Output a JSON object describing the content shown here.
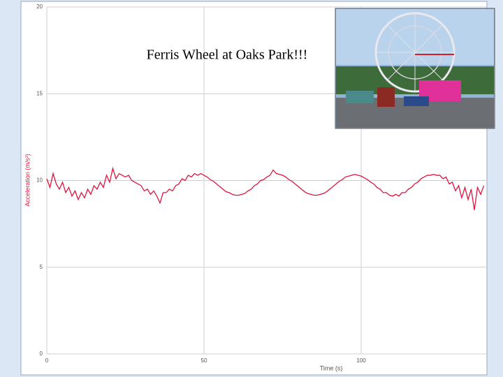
{
  "chart_data": {
    "type": "line",
    "annotation": "Ferris Wheel at Oaks Park!!!",
    "x_label": "Time (s)",
    "y_label": "Acceleration (m/s²)",
    "xlim": [
      0,
      140
    ],
    "ylim": [
      0,
      20
    ],
    "xticks": [
      0,
      50,
      100
    ],
    "yticks": [
      0,
      5,
      10,
      15,
      20
    ],
    "grid": true,
    "x": [
      0,
      1,
      2,
      3,
      4,
      5,
      6,
      7,
      8,
      9,
      10,
      11,
      12,
      13,
      14,
      15,
      16,
      17,
      18,
      19,
      20,
      21,
      22,
      23,
      24,
      25,
      26,
      27,
      28,
      29,
      30,
      31,
      32,
      33,
      34,
      35,
      36,
      37,
      38,
      39,
      40,
      41,
      42,
      43,
      44,
      45,
      46,
      47,
      48,
      49,
      50,
      51,
      52,
      53,
      54,
      55,
      56,
      57,
      58,
      59,
      60,
      61,
      62,
      63,
      64,
      65,
      66,
      67,
      68,
      69,
      70,
      71,
      72,
      73,
      74,
      75,
      76,
      77,
      78,
      79,
      80,
      81,
      82,
      83,
      84,
      85,
      86,
      87,
      88,
      89,
      90,
      91,
      92,
      93,
      94,
      95,
      96,
      97,
      98,
      99,
      100,
      101,
      102,
      103,
      104,
      105,
      106,
      107,
      108,
      109,
      110,
      111,
      112,
      113,
      114,
      115,
      116,
      117,
      118,
      119,
      120,
      121,
      122,
      123,
      124,
      125,
      126,
      127,
      128,
      129,
      130,
      131,
      132,
      133,
      134,
      135,
      136,
      137,
      138,
      139
    ],
    "series": [
      {
        "name": "Acceleration",
        "color": "#e0143c",
        "values": [
          10.1,
          9.6,
          10.4,
          9.8,
          9.5,
          9.9,
          9.3,
          9.6,
          9.1,
          9.4,
          8.9,
          9.3,
          9.0,
          9.5,
          9.2,
          9.7,
          9.5,
          9.9,
          9.6,
          10.3,
          9.9,
          10.7,
          10.1,
          10.4,
          10.3,
          10.2,
          10.3,
          10.0,
          9.9,
          9.8,
          9.7,
          9.4,
          9.5,
          9.2,
          9.4,
          9.1,
          8.7,
          9.3,
          9.3,
          9.5,
          9.4,
          9.7,
          9.8,
          10.1,
          10.0,
          10.3,
          10.2,
          10.4,
          10.3,
          10.4,
          10.3,
          10.2,
          10.05,
          9.95,
          9.8,
          9.65,
          9.5,
          9.35,
          9.3,
          9.2,
          9.15,
          9.15,
          9.2,
          9.25,
          9.4,
          9.5,
          9.7,
          9.8,
          10.0,
          10.05,
          10.2,
          10.3,
          10.6,
          10.4,
          10.35,
          10.3,
          10.2,
          10.05,
          9.95,
          9.8,
          9.65,
          9.5,
          9.35,
          9.25,
          9.2,
          9.15,
          9.15,
          9.2,
          9.25,
          9.35,
          9.5,
          9.65,
          9.8,
          9.95,
          10.05,
          10.2,
          10.25,
          10.3,
          10.35,
          10.3,
          10.25,
          10.15,
          10.05,
          9.9,
          9.8,
          9.6,
          9.5,
          9.3,
          9.3,
          9.15,
          9.1,
          9.2,
          9.1,
          9.3,
          9.3,
          9.5,
          9.6,
          9.8,
          9.9,
          10.1,
          10.2,
          10.3,
          10.3,
          10.35,
          10.3,
          10.3,
          10.1,
          10.2,
          9.8,
          9.9,
          9.4,
          9.7,
          9.0,
          9.6,
          8.9,
          9.5,
          8.3,
          9.6,
          9.2,
          9.7
        ]
      }
    ]
  }
}
